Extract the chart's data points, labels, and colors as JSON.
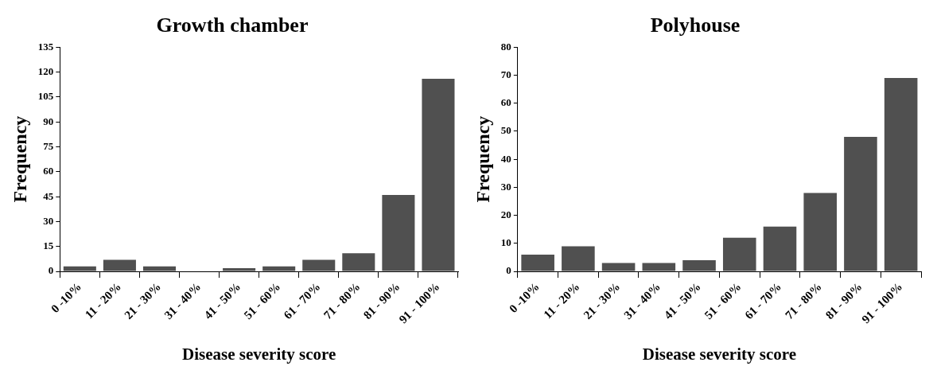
{
  "chart_data": [
    {
      "type": "bar",
      "title": "Growth chamber",
      "xlabel": "Disease severity score",
      "ylabel": "Frequency",
      "categories": [
        "0 -10%",
        "11 - 20%",
        "21 - 30%",
        "31 - 40%",
        "41 - 50%",
        "51 - 60%",
        "61 - 70%",
        "71 - 80%",
        "81 - 90%",
        "91 - 100%"
      ],
      "values": [
        3,
        7,
        3,
        0,
        2,
        3,
        7,
        11,
        46,
        116
      ],
      "color": "#505050",
      "ylim": [
        0,
        135
      ],
      "yticks": [
        0,
        15,
        30,
        45,
        60,
        75,
        90,
        105,
        120,
        135
      ],
      "grid": false,
      "legend": false
    },
    {
      "type": "bar",
      "title": "Polyhouse",
      "xlabel": "Disease severity score",
      "ylabel": "Frequency",
      "categories": [
        "0 -10%",
        "11 - 20%",
        "21 - 30%",
        "31 - 40%",
        "41 - 50%",
        "51 - 60%",
        "61 - 70%",
        "71 - 80%",
        "81 - 90%",
        "91 - 100%"
      ],
      "values": [
        6,
        9,
        3,
        3,
        4,
        12,
        16,
        28,
        48,
        69
      ],
      "color": "#505050",
      "ylim": [
        0,
        80
      ],
      "yticks": [
        0,
        10,
        20,
        30,
        40,
        50,
        60,
        70,
        80
      ],
      "grid": false,
      "legend": false
    }
  ]
}
